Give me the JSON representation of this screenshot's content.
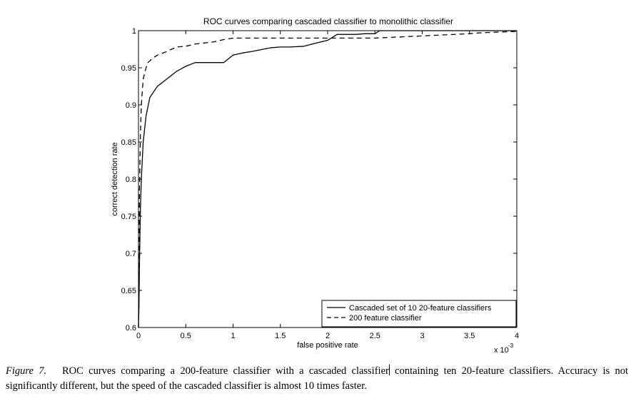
{
  "chart_data": {
    "type": "line",
    "title": "ROC curves comparing cascaded classifier to monolithic classifier",
    "xlabel": "false positive rate",
    "ylabel": "correct detection rate",
    "x_multiplier": "x 10",
    "x_multiplier_exp": "-3",
    "xlim": [
      0,
      4
    ],
    "ylim": [
      0.6,
      1
    ],
    "xticks": [
      0,
      0.5,
      1,
      1.5,
      2,
      2.5,
      3,
      3.5,
      4
    ],
    "xtick_labels": [
      "0",
      "0.5",
      "1",
      "1.5",
      "2",
      "2.5",
      "3",
      "3.5",
      "4"
    ],
    "yticks": [
      0.6,
      0.65,
      0.7,
      0.75,
      0.8,
      0.85,
      0.9,
      0.95,
      1
    ],
    "ytick_labels": [
      "0.6",
      "0.65",
      "0.7",
      "0.75",
      "0.8",
      "0.85",
      "0.9",
      "0.95",
      "1"
    ],
    "grid": false,
    "legend_position": "bottom-right",
    "series": [
      {
        "name": "Cascaded set of 10 20-feature classifiers",
        "style": "solid",
        "color": "#000000",
        "x": [
          0,
          0.005,
          0.01,
          0.02,
          0.03,
          0.05,
          0.08,
          0.12,
          0.2,
          0.3,
          0.4,
          0.5,
          0.6,
          0.8,
          0.9,
          1.0,
          1.1,
          1.2,
          1.4,
          1.5,
          1.6,
          1.75,
          1.9,
          2.0,
          2.1,
          2.2,
          2.3,
          2.4,
          2.5,
          2.55,
          2.7,
          3.0,
          3.5,
          4.0
        ],
        "y": [
          0.6,
          0.63,
          0.68,
          0.76,
          0.8,
          0.85,
          0.885,
          0.91,
          0.925,
          0.935,
          0.945,
          0.952,
          0.957,
          0.957,
          0.957,
          0.967,
          0.97,
          0.972,
          0.977,
          0.978,
          0.978,
          0.979,
          0.984,
          0.987,
          0.995,
          0.995,
          0.995,
          0.996,
          0.996,
          1.0,
          1.0,
          1.0,
          1.0,
          1.0
        ]
      },
      {
        "name": "200 feature classifier",
        "style": "dashed",
        "color": "#000000",
        "x": [
          0,
          0.005,
          0.01,
          0.02,
          0.03,
          0.05,
          0.08,
          0.1,
          0.15,
          0.2,
          0.3,
          0.4,
          0.5,
          0.6,
          0.8,
          0.9,
          1.0,
          1.2,
          1.5,
          2.0,
          2.5,
          3.0,
          3.5,
          3.6,
          4.0
        ],
        "y": [
          0.6,
          0.68,
          0.78,
          0.86,
          0.9,
          0.935,
          0.95,
          0.957,
          0.963,
          0.967,
          0.972,
          0.978,
          0.979,
          0.982,
          0.985,
          0.988,
          0.99,
          0.99,
          0.99,
          0.99,
          0.99,
          0.993,
          0.996,
          0.997,
          0.999
        ]
      }
    ]
  },
  "caption": {
    "label": "Figure 7.",
    "text_before_cursor": "ROC curves comparing a 200-feature classifier with a cascaded classifier",
    "text_after_cursor": " containing ten 20-feature classifiers. Accuracy is not significantly different, but the speed of the cascaded classifier is almost 10 times faster."
  }
}
